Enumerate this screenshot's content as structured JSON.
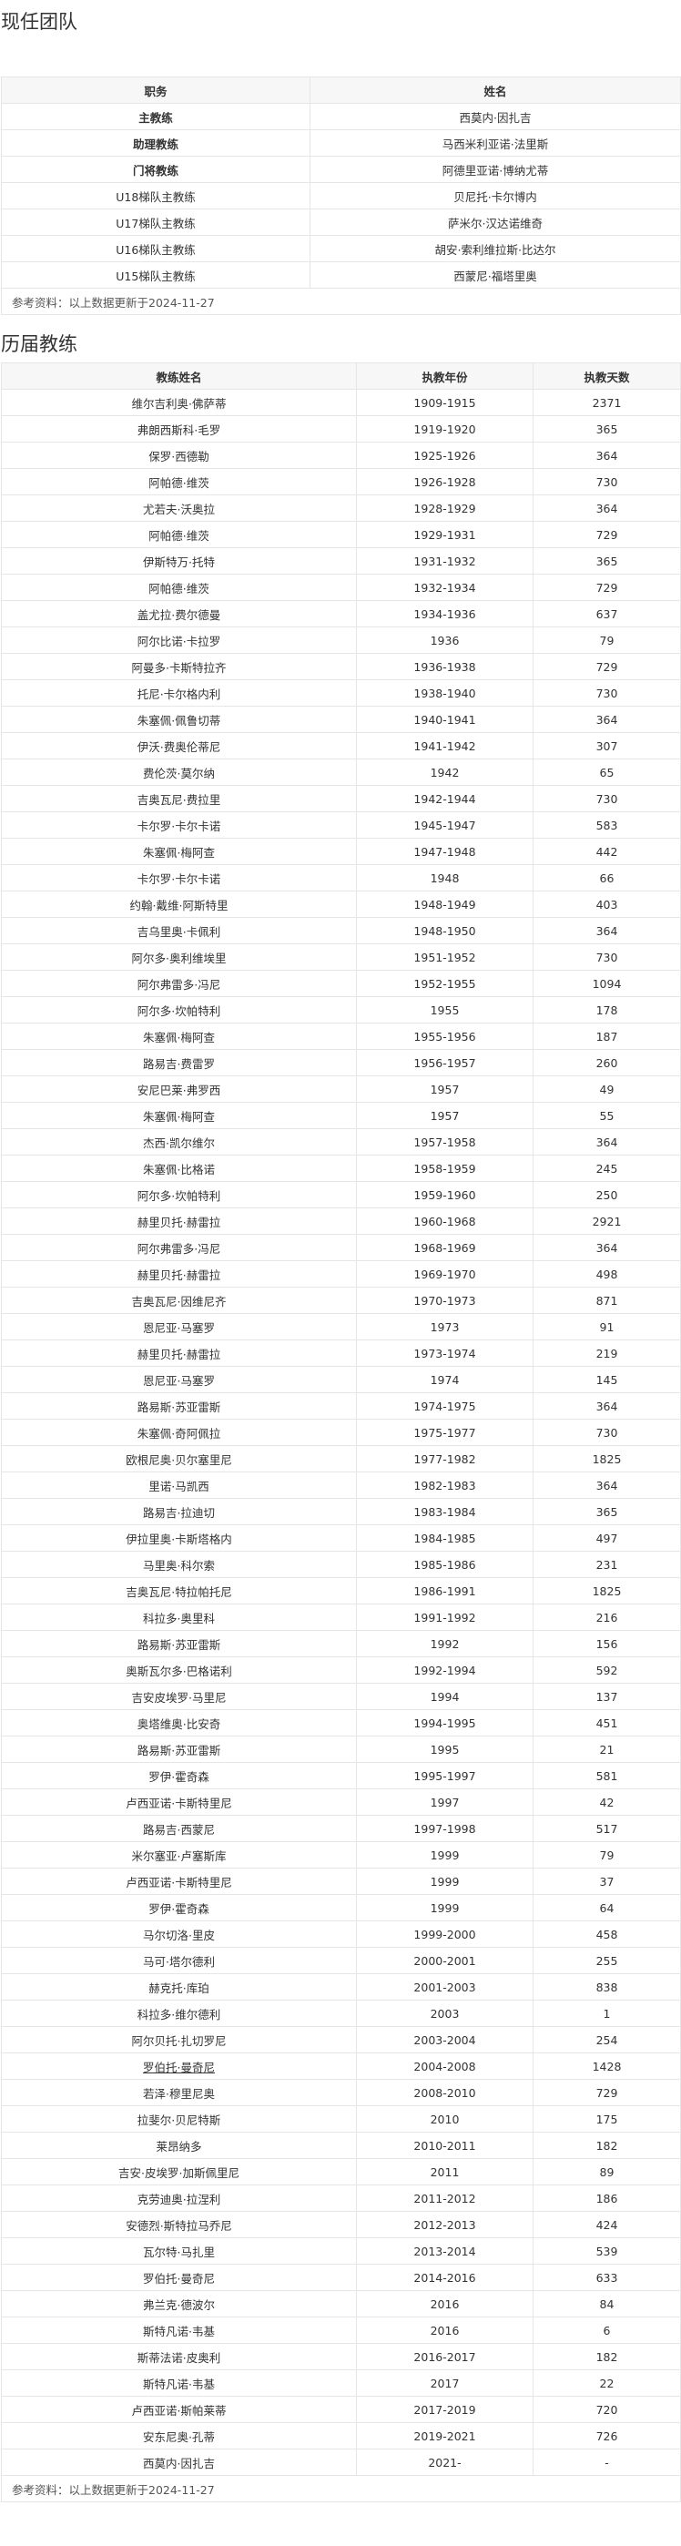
{
  "current_team": {
    "title": "现任团队",
    "headers": [
      "职务",
      "姓名"
    ],
    "rows": [
      {
        "role": "主教练",
        "name": "西莫内·因扎吉",
        "bold": true
      },
      {
        "role": "助理教练",
        "name": "马西米利亚诺·法里斯",
        "bold": true
      },
      {
        "role": "门将教练",
        "name": "阿德里亚诺·博纳尤蒂",
        "bold": true
      },
      {
        "role": "U18梯队主教练",
        "name": "贝尼托·卡尔博内",
        "bold": false
      },
      {
        "role": "U17梯队主教练",
        "name": "萨米尔·汉达诺维奇",
        "bold": false
      },
      {
        "role": "U16梯队主教练",
        "name": "胡安·索利维拉斯·比达尔",
        "bold": false
      },
      {
        "role": "U15梯队主教练",
        "name": "西蒙尼·福塔里奥",
        "bold": false
      }
    ],
    "note": "参考资料：以上数据更新于2024-11-27"
  },
  "past_coaches": {
    "title": "历届教练",
    "headers": [
      "教练姓名",
      "执教年份",
      "执教天数"
    ],
    "rows": [
      [
        "维尔吉利奥·佛萨蒂",
        "1909-1915",
        "2371"
      ],
      [
        "弗朗西斯科·毛罗",
        "1919-1920",
        "365"
      ],
      [
        "保罗·西德勒",
        "1925-1926",
        "364"
      ],
      [
        "阿帕德·维茨",
        "1926-1928",
        "730"
      ],
      [
        "尤若夫·沃奥拉",
        "1928-1929",
        "364"
      ],
      [
        "阿帕德·维茨",
        "1929-1931",
        "729"
      ],
      [
        "伊斯特万·托特",
        "1931-1932",
        "365"
      ],
      [
        "阿帕德·维茨",
        "1932-1934",
        "729"
      ],
      [
        "盖尤拉·费尔德曼",
        "1934-1936",
        "637"
      ],
      [
        "阿尔比诺·卡拉罗",
        "1936",
        "79"
      ],
      [
        "阿曼多·卡斯特拉齐",
        "1936-1938",
        "729"
      ],
      [
        "托尼·卡尔格内利",
        "1938-1940",
        "730"
      ],
      [
        "朱塞佩·佩鲁切蒂",
        "1940-1941",
        "364"
      ],
      [
        "伊沃·费奥伦蒂尼",
        "1941-1942",
        "307"
      ],
      [
        "费伦茨·莫尔纳",
        "1942",
        "65"
      ],
      [
        "吉奥瓦尼·费拉里",
        "1942-1944",
        "730"
      ],
      [
        "卡尔罗·卡尔卡诺",
        "1945-1947",
        "583"
      ],
      [
        "朱塞佩·梅阿查",
        "1947-1948",
        "442"
      ],
      [
        "卡尔罗·卡尔卡诺",
        "1948",
        "66"
      ],
      [
        "约翰·戴维·阿斯特里",
        "1948-1949",
        "403"
      ],
      [
        "吉乌里奥·卡佩利",
        "1948-1950",
        "364"
      ],
      [
        "阿尔多·奥利维埃里",
        "1951-1952",
        "730"
      ],
      [
        "阿尔弗雷多·冯尼",
        "1952-1955",
        "1094"
      ],
      [
        "阿尔多·坎帕特利",
        "1955",
        "178"
      ],
      [
        "朱塞佩·梅阿查",
        "1955-1956",
        "187"
      ],
      [
        "路易吉·费雷罗",
        "1956-1957",
        "260"
      ],
      [
        "安尼巴莱·弗罗西",
        "1957",
        "49"
      ],
      [
        "朱塞佩·梅阿查",
        "1957",
        "55"
      ],
      [
        "杰西·凯尔维尔",
        "1957-1958",
        "364"
      ],
      [
        "朱塞佩·比格诺",
        "1958-1959",
        "245"
      ],
      [
        "阿尔多·坎帕特利",
        "1959-1960",
        "250"
      ],
      [
        "赫里贝托·赫雷拉",
        "1960-1968",
        "2921"
      ],
      [
        "阿尔弗雷多·冯尼",
        "1968-1969",
        "364"
      ],
      [
        "赫里贝托·赫雷拉",
        "1969-1970",
        "498"
      ],
      [
        "吉奥瓦尼·因维尼齐",
        "1970-1973",
        "871"
      ],
      [
        "恩尼亚·马塞罗",
        "1973",
        "91"
      ],
      [
        "赫里贝托·赫雷拉",
        "1973-1974",
        "219"
      ],
      [
        "恩尼亚·马塞罗",
        "1974",
        "145"
      ],
      [
        "路易斯·苏亚雷斯",
        "1974-1975",
        "364"
      ],
      [
        "朱塞佩·奇阿佩拉",
        "1975-1977",
        "730"
      ],
      [
        "欧根尼奥·贝尔塞里尼",
        "1977-1982",
        "1825"
      ],
      [
        "里诺·马凯西",
        "1982-1983",
        "364"
      ],
      [
        "路易吉·拉迪切",
        "1983-1984",
        "365"
      ],
      [
        "伊拉里奥·卡斯塔格内",
        "1984-1985",
        "497"
      ],
      [
        "马里奥·科尔索",
        "1985-1986",
        "231"
      ],
      [
        "吉奥瓦尼·特拉帕托尼",
        "1986-1991",
        "1825"
      ],
      [
        "科拉多·奥里科",
        "1991-1992",
        "216"
      ],
      [
        "路易斯·苏亚雷斯",
        "1992",
        "156"
      ],
      [
        "奥斯瓦尔多·巴格诺利",
        "1992-1994",
        "592"
      ],
      [
        "吉安皮埃罗·马里尼",
        "1994",
        "137"
      ],
      [
        "奥塔维奥·比安奇",
        "1994-1995",
        "451"
      ],
      [
        "路易斯·苏亚雷斯",
        "1995",
        "21"
      ],
      [
        "罗伊·霍奇森",
        "1995-1997",
        "581"
      ],
      [
        "卢西亚诺·卡斯特里尼",
        "1997",
        "42"
      ],
      [
        "路易吉·西蒙尼",
        "1997-1998",
        "517"
      ],
      [
        "米尔塞亚·卢塞斯库",
        "1999",
        "79"
      ],
      [
        "卢西亚诺·卡斯特里尼",
        "1999",
        "37"
      ],
      [
        "罗伊·霍奇森",
        "1999",
        "64"
      ],
      [
        "马尔切洛·里皮",
        "1999-2000",
        "458"
      ],
      [
        "马可·塔尔德利",
        "2000-2001",
        "255"
      ],
      [
        "赫克托·库珀",
        "2001-2003",
        "838"
      ],
      [
        "科拉多·维尔德利",
        "2003",
        "1"
      ],
      [
        "阿尔贝托·扎切罗尼",
        "2003-2004",
        "254"
      ],
      [
        "罗伯托·曼奇尼",
        "2004-2008",
        "1428"
      ],
      [
        "若泽·穆里尼奥",
        "2008-2010",
        "729"
      ],
      [
        "拉斐尔·贝尼特斯",
        "2010",
        "175"
      ],
      [
        "莱昂纳多",
        "2010-2011",
        "182"
      ],
      [
        "吉安·皮埃罗·加斯佩里尼",
        "2011",
        "89"
      ],
      [
        "克劳迪奥·拉涅利",
        "2011-2012",
        "186"
      ],
      [
        "安德烈·斯特拉马乔尼",
        "2012-2013",
        "424"
      ],
      [
        "瓦尔特·马扎里",
        "2013-2014",
        "539"
      ],
      [
        "罗伯托·曼奇尼",
        "2014-2016",
        "633"
      ],
      [
        "弗兰克·德波尔",
        "2016",
        "84"
      ],
      [
        "斯特凡诺·韦基",
        "2016",
        "6"
      ],
      [
        "斯蒂法诺·皮奥利",
        "2016-2017",
        "182"
      ],
      [
        "斯特凡诺·韦基",
        "2017",
        "22"
      ],
      [
        "卢西亚诺·斯帕莱蒂",
        "2017-2019",
        "720"
      ],
      [
        "安东尼奥·孔蒂",
        "2019-2021",
        "726"
      ],
      [
        "西莫内·因扎吉",
        "2021-",
        "-"
      ]
    ],
    "linked_row_index": 63,
    "note": "参考资料：以上数据更新于2024-11-27"
  }
}
